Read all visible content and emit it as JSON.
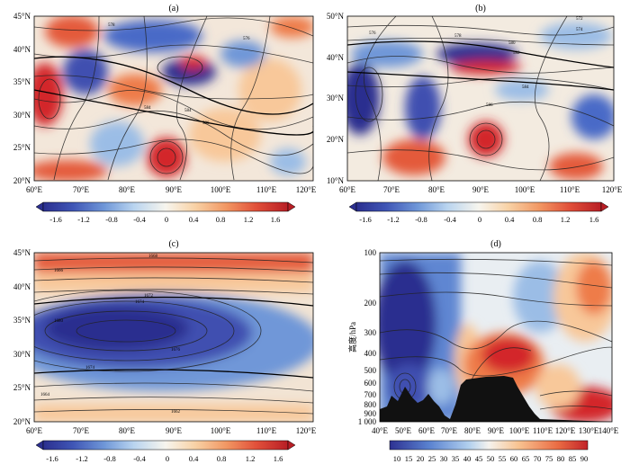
{
  "panels": [
    {
      "id": "a",
      "label": "(a)",
      "y_ticks": [
        "45°N",
        "40°N",
        "35°N",
        "30°N",
        "25°N",
        "20°N"
      ],
      "x_ticks": [
        "60°E",
        "70°E",
        "80°E",
        "90°E",
        "100°E",
        "110°E",
        "120°E"
      ],
      "contour_labels": [
        "578",
        "576",
        "584",
        "586",
        "584"
      ],
      "colorbar_labels": [
        "-1.6",
        "-1.2",
        "-0.8",
        "-0.4",
        "0",
        "0.4",
        "0.8",
        "1.2",
        "1.6"
      ]
    },
    {
      "id": "b",
      "label": "(b)",
      "y_ticks": [
        "50°N",
        "40°N",
        "30°N",
        "20°N",
        "10°N"
      ],
      "x_ticks": [
        "60°E",
        "70°E",
        "80°E",
        "90°E",
        "100°E",
        "110°E",
        "120°E"
      ],
      "contour_labels": [
        "572",
        "574",
        "576",
        "578",
        "580",
        "582",
        "584",
        "586"
      ],
      "colorbar_labels": [
        "-1.6",
        "-1.2",
        "-0.8",
        "-0.4",
        "0",
        "0.4",
        "0.8",
        "1.2",
        "1.6"
      ]
    },
    {
      "id": "c",
      "label": "(c)",
      "y_ticks": [
        "45°N",
        "40°N",
        "35°N",
        "30°N",
        "25°N",
        "20°N"
      ],
      "x_ticks": [
        "60°E",
        "70°E",
        "80°E",
        "90°E",
        "100°E",
        "110°E",
        "120°E"
      ],
      "contour_labels": [
        "1668",
        "1666",
        "1672",
        "1674",
        "1676",
        "1680",
        "1674",
        "1662",
        "1664"
      ],
      "colorbar_labels": [
        "-1.6",
        "-1.2",
        "-0.8",
        "-0.4",
        "0",
        "0.4",
        "0.8",
        "1.2",
        "1.6"
      ]
    },
    {
      "id": "d",
      "label": "(d)",
      "y_axis_title": "高度/hPa",
      "y_ticks": [
        "100",
        "200",
        "300",
        "400",
        "500",
        "600",
        "700",
        "800",
        "900",
        "1 000"
      ],
      "x_ticks": [
        "40°E",
        "50°E",
        "60°E",
        "70°E",
        "80°E",
        "90°E",
        "100°E",
        "110°E",
        "120°E",
        "130°E",
        "140°E"
      ],
      "colorbar_labels": [
        "10",
        "15",
        "20",
        "25",
        "30",
        "35",
        "40",
        "45",
        "50",
        "55",
        "60",
        "65",
        "70",
        "75",
        "80",
        "85",
        "90"
      ]
    }
  ],
  "colors": {
    "blue_dark": "#2b2f8f",
    "blue": "#4a6bc7",
    "blue_light": "#9bbde6",
    "white": "#f5f3ee",
    "orange_light": "#f8c89a",
    "orange": "#ee7b4a",
    "red": "#d3282a",
    "terrain": "#111111"
  }
}
